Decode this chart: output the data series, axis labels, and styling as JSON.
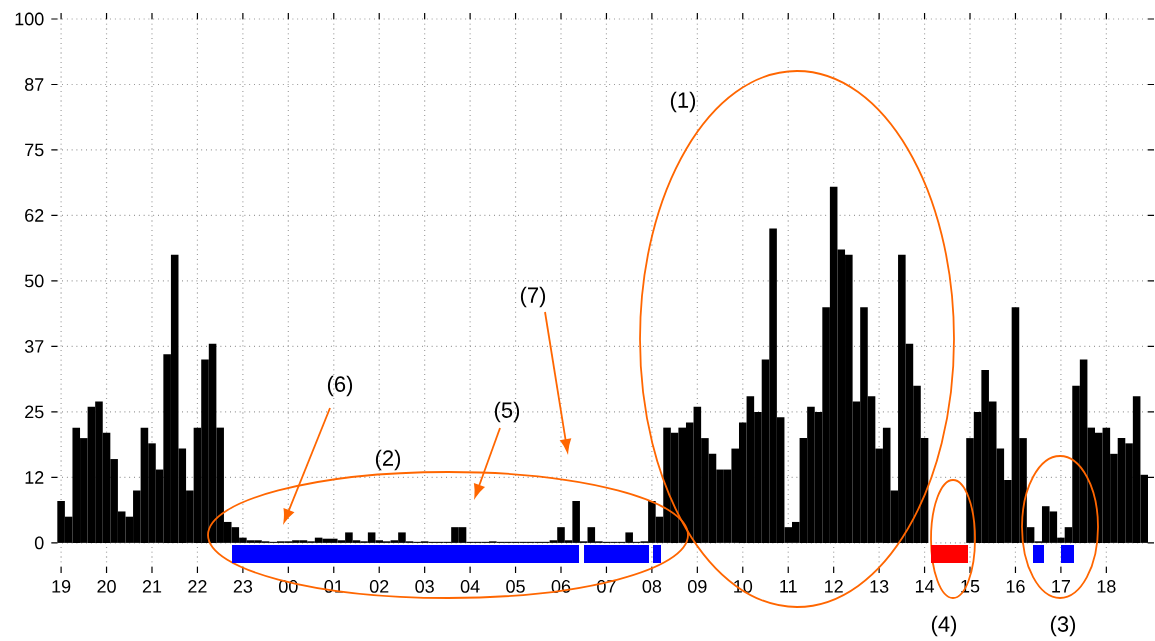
{
  "chart_data": {
    "type": "bar",
    "categories": [
      "19",
      null,
      null,
      null,
      null,
      null,
      "20",
      null,
      null,
      null,
      null,
      null,
      "21",
      null,
      null,
      null,
      null,
      null,
      "22",
      null,
      null,
      null,
      null,
      null,
      "23",
      null,
      null,
      null,
      null,
      null,
      "00",
      null,
      null,
      null,
      null,
      null,
      "01",
      null,
      null,
      null,
      null,
      null,
      "02",
      null,
      null,
      null,
      null,
      null,
      "03",
      null,
      null,
      null,
      null,
      null,
      "04",
      null,
      null,
      null,
      null,
      null,
      "05",
      null,
      null,
      null,
      null,
      null,
      "06",
      null,
      null,
      null,
      null,
      null,
      "07",
      null,
      null,
      null,
      null,
      null,
      "08",
      null,
      null,
      null,
      null,
      null,
      "09",
      null,
      null,
      null,
      null,
      null,
      "10",
      null,
      null,
      null,
      null,
      null,
      "11",
      null,
      null,
      null,
      null,
      null,
      "12",
      null,
      null,
      null,
      null,
      null,
      "13",
      null,
      null,
      null,
      null,
      null,
      "14",
      null,
      null,
      null,
      null,
      null,
      "15",
      null,
      null,
      null,
      null,
      null,
      "16",
      null,
      null,
      null,
      null,
      null,
      "17",
      null,
      null,
      null,
      null,
      null,
      "18",
      null,
      null,
      null,
      null,
      null
    ],
    "series": [
      {
        "color": "#000000",
        "values": [
          8,
          5,
          22,
          20,
          26,
          27,
          21,
          16,
          6,
          5,
          10,
          22,
          19,
          14,
          36,
          55,
          18,
          10,
          22,
          35,
          38,
          22,
          4,
          3,
          1,
          0.5,
          0.5,
          0.3,
          0.2,
          0.3,
          0.3,
          0.5,
          0.5,
          0.3,
          1,
          0.8,
          0.8,
          0.5,
          2,
          0.5,
          0.3,
          2,
          0.5,
          0.3,
          0.5,
          2,
          0.3,
          0.2,
          0.3,
          0.2,
          0.2,
          0.2,
          3,
          3,
          0.2,
          0.2,
          0.2,
          0.3,
          0.2,
          0.2,
          0.2,
          0.2,
          0.2,
          0.2,
          0.2,
          0.5,
          3,
          0.5,
          8,
          0.3,
          3,
          0.3,
          0.2,
          0.2,
          0.2,
          2,
          0.2,
          0.3,
          8,
          5,
          22,
          21,
          22,
          23,
          26,
          20,
          17,
          14,
          14,
          18,
          23,
          28,
          25,
          35,
          60,
          24,
          3,
          4,
          20,
          26,
          25,
          45,
          68,
          56,
          55,
          27,
          45,
          28,
          18,
          22,
          10,
          55,
          38,
          30,
          20,
          0,
          0,
          0,
          0,
          0,
          20,
          25,
          33,
          27,
          18,
          12,
          45,
          20,
          3,
          0.3,
          7,
          6,
          1,
          3,
          30,
          35,
          22,
          21,
          22,
          17,
          20,
          19,
          28,
          13
        ]
      }
    ],
    "ylim": [
      -4.6,
      100
    ],
    "yticks": [
      0,
      {
        "value": 12.5,
        "label": "12"
      },
      25,
      {
        "value": 37.5,
        "label": "37"
      },
      50,
      {
        "value": 62.5,
        "label": "62"
      },
      75,
      {
        "value": 87.5,
        "label": "87"
      },
      100
    ],
    "grid": true,
    "annotations": [
      "(1)",
      "(2)",
      "(3)",
      "(4)",
      "(5)",
      "(6)",
      "(7)"
    ]
  }
}
